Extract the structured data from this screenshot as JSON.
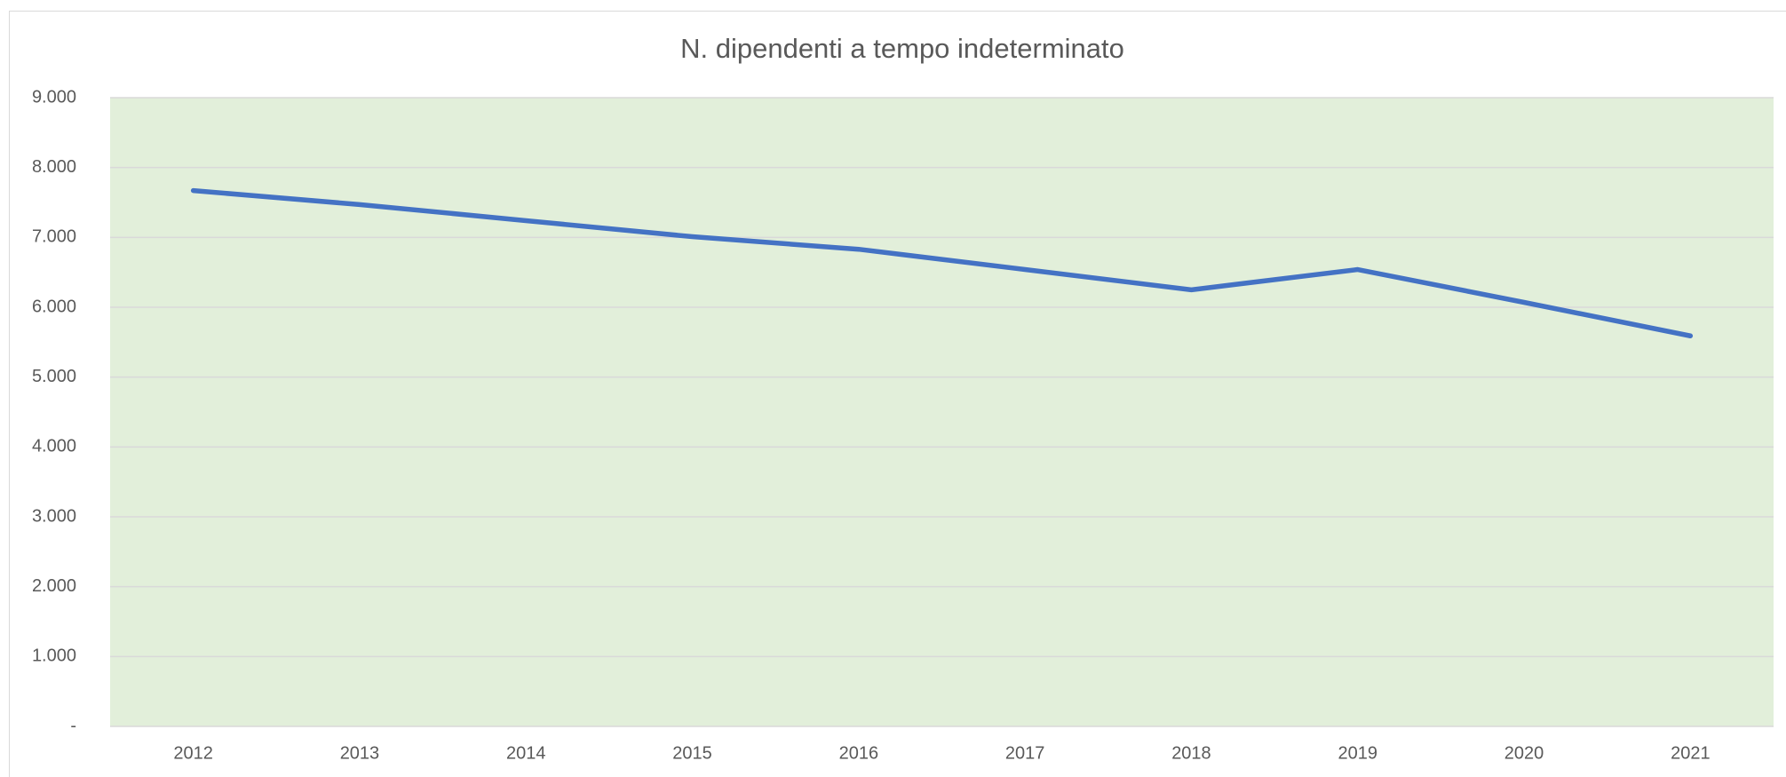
{
  "chart_data": {
    "type": "line",
    "title": "N. dipendenti a tempo indeterminato",
    "categories": [
      "2012",
      "2013",
      "2014",
      "2015",
      "2016",
      "2017",
      "2018",
      "2019",
      "2020",
      "2021"
    ],
    "series": [
      {
        "name": "N. dipendenti a tempo indeterminato",
        "color": "#4472c4",
        "values": [
          7670,
          7470,
          7240,
          7010,
          6830,
          6540,
          6250,
          6540,
          6070,
          5590
        ]
      }
    ],
    "ylim": [
      0,
      9000
    ],
    "yticks": [
      {
        "value": 0,
        "label": "-"
      },
      {
        "value": 1000,
        "label": "1.000"
      },
      {
        "value": 2000,
        "label": "2.000"
      },
      {
        "value": 3000,
        "label": "3.000"
      },
      {
        "value": 4000,
        "label": "4.000"
      },
      {
        "value": 5000,
        "label": "5.000"
      },
      {
        "value": 6000,
        "label": "6.000"
      },
      {
        "value": 7000,
        "label": "7.000"
      },
      {
        "value": 8000,
        "label": "8.000"
      },
      {
        "value": 9000,
        "label": "9.000"
      }
    ],
    "grid": true,
    "plot_background": "#e2efda"
  }
}
